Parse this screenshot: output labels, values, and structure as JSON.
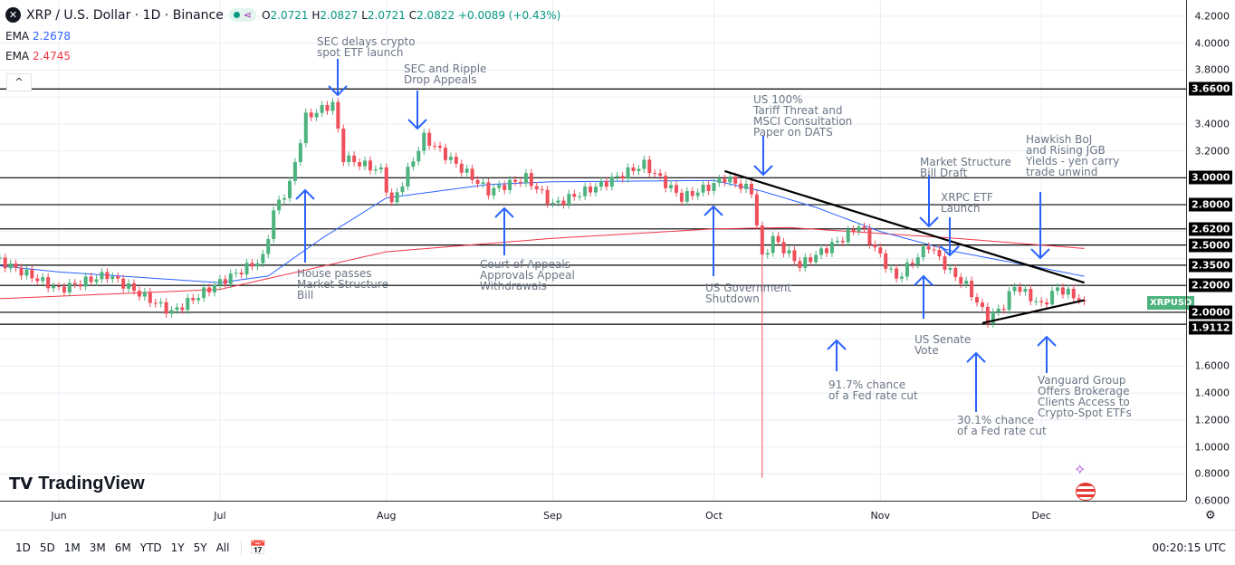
{
  "header": {
    "symbol": "XRP / U.S. Dollar · 1D · Binance",
    "open_label": "O",
    "open": "2.0721",
    "high_label": "H",
    "high": "2.0827",
    "low_label": "L",
    "low": "2.0721",
    "close_label": "C",
    "close": "2.0822",
    "change": "+0.0089 (+0.43%)"
  },
  "indicators": [
    {
      "label": "EMA",
      "value": "2.2678",
      "color": "#2962ff"
    },
    {
      "label": "EMA",
      "value": "2.4745",
      "color": "#f23645"
    }
  ],
  "collapse_label": "^",
  "symbol_tag": "XRPUSD",
  "logo": "TradingView",
  "toolbar": {
    "ranges": [
      "1D",
      "5D",
      "1M",
      "3M",
      "6M",
      "YTD",
      "1Y",
      "5Y",
      "All"
    ],
    "clock": "00:20:15 UTC"
  },
  "colors": {
    "up": "#4db37e",
    "down": "#ef4f5b",
    "ema_fast": "#2962ff",
    "ema_slow": "#f23645",
    "annotation_arrow": "#2962ff"
  },
  "chart_data": {
    "type": "candlestick",
    "title": "XRP / U.S. Dollar · 1D · Binance",
    "ylim": [
      0.6,
      4.2
    ],
    "grid": true,
    "y_ticks": [
      "4.2000",
      "4.0000",
      "3.8000",
      "3.4000",
      "3.2000",
      "1.6000",
      "1.4000",
      "1.2000",
      "1.0000",
      "0.8000",
      "0.6000"
    ],
    "x_ticks": [
      {
        "label": "Jun",
        "date": "2025-06-01"
      },
      {
        "label": "Jul",
        "date": "2025-07-01"
      },
      {
        "label": "Aug",
        "date": "2025-08-01"
      },
      {
        "label": "Sep",
        "date": "2025-09-01"
      },
      {
        "label": "Oct",
        "date": "2025-10-01"
      },
      {
        "label": "Nov",
        "date": "2025-11-01"
      },
      {
        "label": "Dec",
        "date": "2025-12-01"
      }
    ],
    "close_keypoints": [
      [
        "2025-05-20",
        2.4
      ],
      [
        "2025-06-01",
        2.17
      ],
      [
        "2025-06-10",
        2.28
      ],
      [
        "2025-06-22",
        2.0
      ],
      [
        "2025-06-30",
        2.2
      ],
      [
        "2025-07-09",
        2.4
      ],
      [
        "2025-07-11",
        2.75
      ],
      [
        "2025-07-14",
        2.95
      ],
      [
        "2025-07-17",
        3.45
      ],
      [
        "2025-07-22",
        3.55
      ],
      [
        "2025-07-24",
        3.15
      ],
      [
        "2025-07-31",
        3.05
      ],
      [
        "2025-08-02",
        2.8
      ],
      [
        "2025-08-08",
        3.3
      ],
      [
        "2025-08-14",
        3.1
      ],
      [
        "2025-08-20",
        2.9
      ],
      [
        "2025-08-27",
        3.0
      ],
      [
        "2025-09-01",
        2.8
      ],
      [
        "2025-09-10",
        2.95
      ],
      [
        "2025-09-18",
        3.1
      ],
      [
        "2025-09-25",
        2.85
      ],
      [
        "2025-10-01",
        2.95
      ],
      [
        "2025-10-03",
        3.0
      ],
      [
        "2025-10-08",
        2.9
      ],
      [
        "2025-10-10",
        2.4
      ],
      [
        "2025-10-12",
        2.55
      ],
      [
        "2025-10-17",
        2.35
      ],
      [
        "2025-10-25",
        2.55
      ],
      [
        "2025-10-28",
        2.65
      ],
      [
        "2025-11-03",
        2.3
      ],
      [
        "2025-11-04",
        2.25
      ],
      [
        "2025-11-10",
        2.5
      ],
      [
        "2025-11-14",
        2.3
      ],
      [
        "2025-11-17",
        2.2
      ],
      [
        "2025-11-21",
        1.95
      ],
      [
        "2025-11-24",
        2.05
      ],
      [
        "2025-11-26",
        2.2
      ],
      [
        "2025-12-01",
        2.05
      ],
      [
        "2025-12-04",
        2.18
      ],
      [
        "2025-12-09",
        2.0822
      ]
    ],
    "extreme_wick": {
      "date": "2025-10-10",
      "low": 0.77
    },
    "ema_fast_keypoints": [
      [
        "2025-05-20",
        2.35
      ],
      [
        "2025-06-01",
        2.3
      ],
      [
        "2025-07-01",
        2.22
      ],
      [
        "2025-07-10",
        2.27
      ],
      [
        "2025-07-20",
        2.55
      ],
      [
        "2025-08-01",
        2.85
      ],
      [
        "2025-08-20",
        2.95
      ],
      [
        "2025-09-01",
        2.97
      ],
      [
        "2025-10-01",
        2.98
      ],
      [
        "2025-10-10",
        2.9
      ],
      [
        "2025-10-20",
        2.78
      ],
      [
        "2025-11-01",
        2.6
      ],
      [
        "2025-11-15",
        2.45
      ],
      [
        "2025-12-01",
        2.33
      ],
      [
        "2025-12-09",
        2.2678
      ]
    ],
    "ema_slow_keypoints": [
      [
        "2025-05-20",
        2.1
      ],
      [
        "2025-07-01",
        2.17
      ],
      [
        "2025-08-01",
        2.45
      ],
      [
        "2025-09-01",
        2.55
      ],
      [
        "2025-10-01",
        2.62
      ],
      [
        "2025-10-15",
        2.63
      ],
      [
        "2025-11-15",
        2.55
      ],
      [
        "2025-12-09",
        2.4745
      ]
    ],
    "horizontal_levels": [
      "3.6600",
      "3.0000",
      "2.8000",
      "2.6200",
      "2.5000",
      "2.3500",
      "2.2000",
      "2.0000",
      "1.9112"
    ],
    "trendlines": [
      {
        "from": [
          "2025-10-03",
          3.05
        ],
        "to": [
          "2025-12-09",
          2.22
        ]
      },
      {
        "from": [
          "2025-11-20",
          1.92
        ],
        "to": [
          "2025-12-09",
          2.09
        ]
      }
    ],
    "annotations": [
      {
        "text": "SEC delays crypto\nspot ETF launch",
        "direction": "down",
        "date": "2025-07-23"
      },
      {
        "text": "SEC and Ripple\nDrop Appeals",
        "direction": "down",
        "date": "2025-08-08"
      },
      {
        "text": "US 100%\nTariff Threat and\nMSCI Consultation\nPaper on DATS",
        "direction": "down",
        "date": "2025-10-10"
      },
      {
        "text": "Market Structure\nBill Draft",
        "direction": "down",
        "date": "2025-11-11"
      },
      {
        "text": "XRPC ETF\nLaunch",
        "direction": "down",
        "date": "2025-11-13"
      },
      {
        "text": "Hawkish BoJ\nand Rising JGB\nYields - yen carry\ntrade unwind",
        "direction": "down",
        "date": "2025-11-30"
      },
      {
        "text": "House passes\nMarket Structure\nBill",
        "direction": "up",
        "date": "2025-07-17"
      },
      {
        "text": "Court of Appeals\nApprovals Appeal\nWithdrawals",
        "direction": "up",
        "date": "2025-08-22"
      },
      {
        "text": "US Government\nShutdown",
        "direction": "up",
        "date": "2025-10-01"
      },
      {
        "text": "US Senate\nVote",
        "direction": "up",
        "date": "2025-11-10"
      },
      {
        "text": "91.7% chance\nof a Fed rate cut",
        "direction": "up",
        "date": "2025-10-24"
      },
      {
        "text": "30.1% chance\nof a Fed rate cut",
        "direction": "up",
        "date": "2025-11-19"
      },
      {
        "text": "Vanguard Group\nOffers Brokerage\nClients Access to\nCrypto-Spot ETFs",
        "direction": "up",
        "date": "2025-12-02"
      }
    ]
  }
}
